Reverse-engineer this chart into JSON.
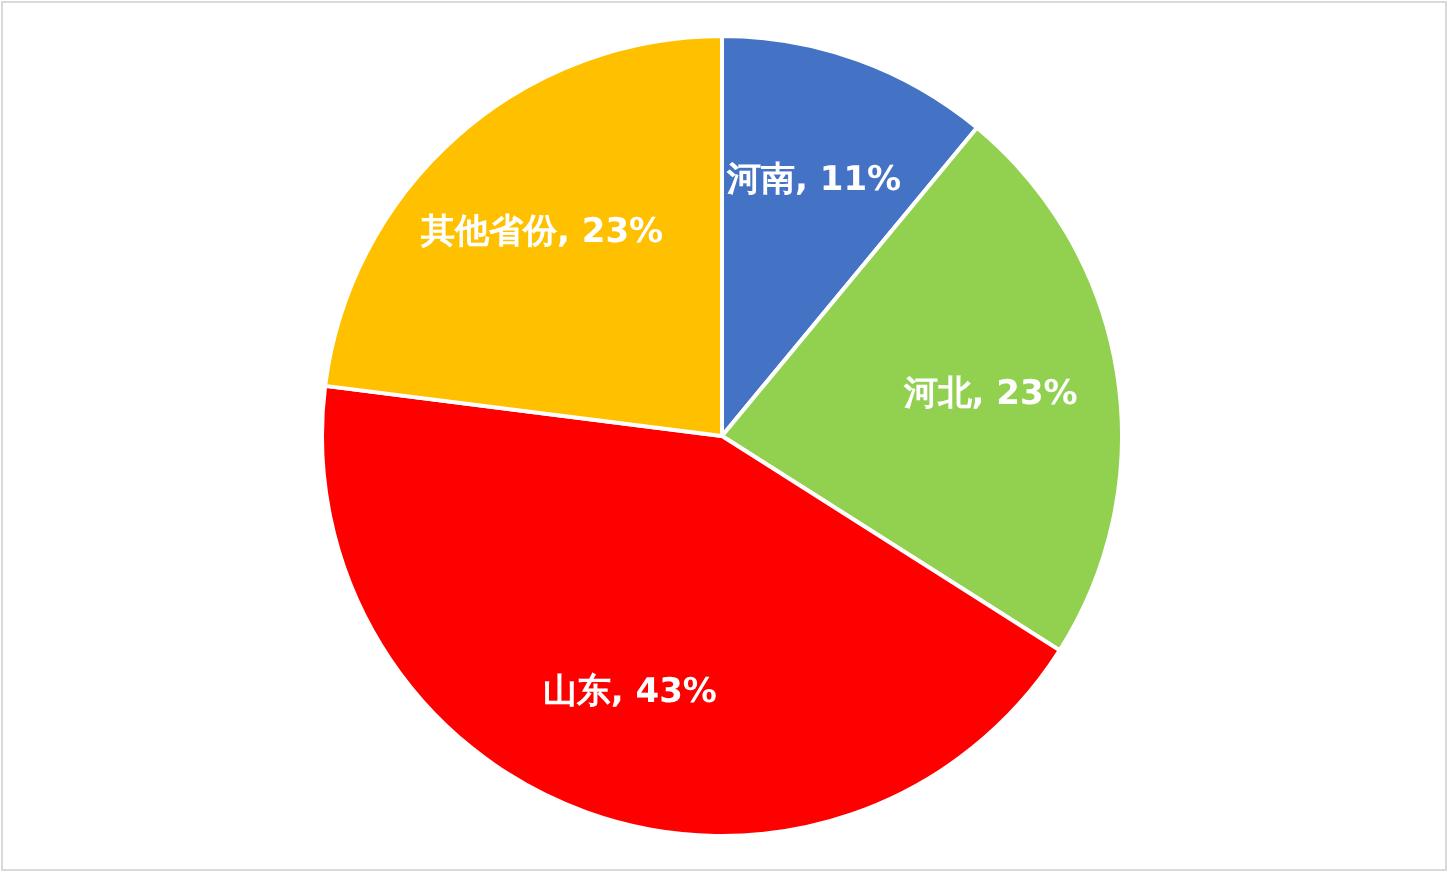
{
  "chart_data": {
    "type": "pie",
    "categories": [
      "河南",
      "河北",
      "山东",
      "其他省份"
    ],
    "values": [
      11,
      23,
      43,
      23
    ],
    "colors": [
      "#4472c4",
      "#92d050",
      "#ff0000",
      "#ffc000"
    ],
    "value_labels": [
      "11%",
      "23%",
      "43%",
      "23%"
    ],
    "legend": false
  }
}
